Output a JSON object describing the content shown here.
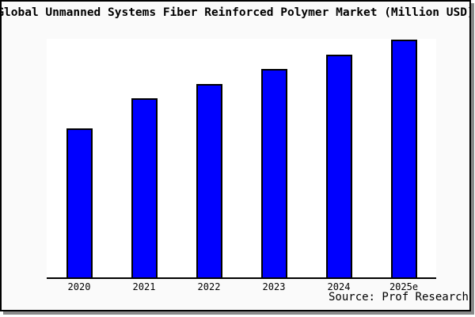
{
  "title": "Global Unmanned Systems Fiber Reinforced Polymer Market (Million USD)",
  "source_label": "Source: Prof Research",
  "colors": {
    "bar_fill": "#0000ff",
    "bar_border": "#000000",
    "canvas_background": "#fafafa",
    "plot_background": "#ffffff",
    "axis_line": "#000000",
    "frame_border": "#000000",
    "frame_shadow": "#8a8a8a",
    "text": "#000000"
  },
  "chart_data": {
    "type": "bar",
    "title": "Global Unmanned Systems Fiber Reinforced Polymer Market (Million USD)",
    "categories": [
      "2020",
      "2021",
      "2022",
      "2023",
      "2024",
      "2025e"
    ],
    "values": [
      62.8,
      75.2,
      81.5,
      87.8,
      93.8,
      100
    ],
    "value_basis": "relative, indexed to 2025e = 100 (no y-axis tick labels shown in chart)",
    "xlabel": "",
    "ylabel": "",
    "ylim": [
      0,
      100.5
    ],
    "grid": false,
    "legend": "none",
    "y_axis_labels_visible": false,
    "source": "Source: Prof Research",
    "bar_color": "#0000ff",
    "bar_border_color": "#000000"
  }
}
